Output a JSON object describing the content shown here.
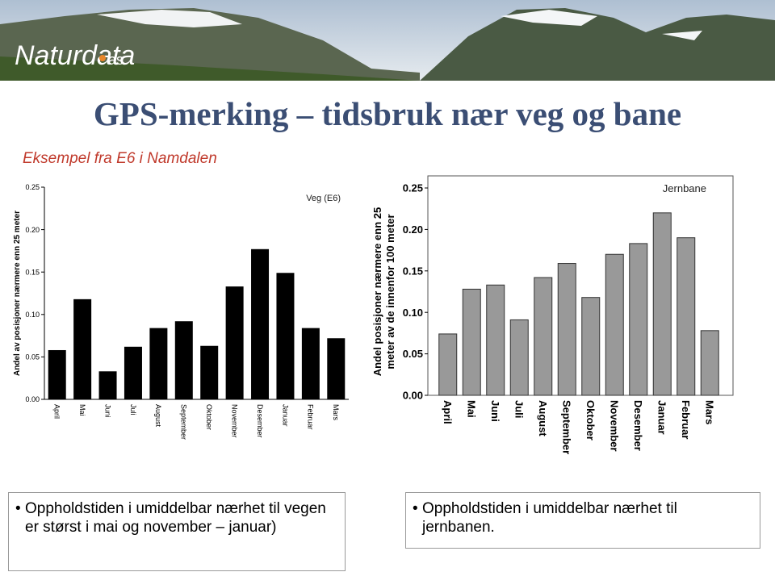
{
  "logo": {
    "name": "Naturdata",
    "suffix": "as"
  },
  "title": "GPS-merking – tidsbruk nær veg og bane",
  "subtitle": "Eksempel fra E6 i Namdalen",
  "chart_data": [
    {
      "type": "bar",
      "annotation": "Veg (E6)",
      "ylabel": [
        "Andel av posisjoner nærmere enn 25 meter"
      ],
      "categories": [
        "April",
        "Mai",
        "Juni",
        "Juli",
        "August",
        "September",
        "Oktober",
        "November",
        "Desember",
        "Januar",
        "Februar",
        "Mars"
      ],
      "values": [
        0.058,
        0.118,
        0.033,
        0.062,
        0.084,
        0.092,
        0.063,
        0.133,
        0.177,
        0.149,
        0.084,
        0.072
      ],
      "color": "#000000",
      "ylim": [
        0,
        0.25
      ],
      "yticks": [
        {
          "value": 0,
          "label": "0.00"
        },
        0.05,
        {
          "value": 0.1,
          "label": "0.10"
        },
        0.15,
        {
          "value": 0.2,
          "label": "0.20"
        },
        0.25
      ]
    },
    {
      "type": "bar",
      "annotation": "Jernbane",
      "ylabel": [
        "Andel posisjoner nærmere enn 25",
        "meter av de innenfor 100 meter"
      ],
      "categories": [
        "April",
        "Mai",
        "Juni",
        "Juli",
        "August",
        "September",
        "Oktober",
        "November",
        "Desember",
        "Januar",
        "Februar",
        "Mars"
      ],
      "values": [
        0.074,
        0.128,
        0.133,
        0.091,
        0.142,
        0.159,
        0.118,
        0.17,
        0.183,
        0.22,
        0.19,
        0.078
      ],
      "color": "#999999",
      "ylim": [
        0,
        0.25
      ],
      "yticks": [
        {
          "value": 0,
          "label": "0.00"
        },
        0.05,
        {
          "value": 0.1,
          "label": "0.10"
        },
        0.15,
        {
          "value": 0.2,
          "label": "0.20"
        },
        0.25
      ]
    }
  ],
  "notes": [
    "Oppholdstiden i umiddelbar nærhet til vegen er størst i mai og november – januar)",
    "Oppholdstiden i umiddelbar nærhet til jernbanen."
  ]
}
